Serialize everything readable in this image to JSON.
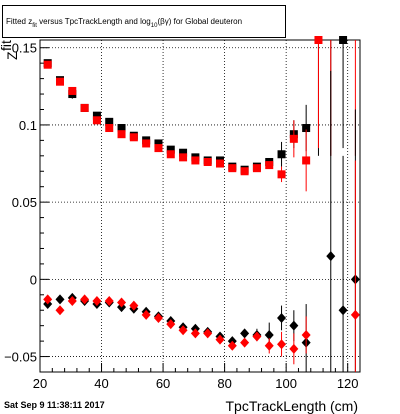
{
  "chart_data": {
    "type": "scatter",
    "title": "Fitted z_{fit} versus TpcTrackLength and log_{10}(βγ) for Global deuteron",
    "title_parts": {
      "prefix": "Fitted  z",
      "z_sub": "fit",
      "middle": " versus TpcTrackLength and log",
      "log_sub": "10",
      "suffix": "(βγ) for Global deuteron"
    },
    "xlabel": "TpcTrackLength (cm)",
    "ylabel": "Z",
    "ylabel_sup": "fit",
    "xlim": [
      20,
      124
    ],
    "ylim": [
      -0.06,
      0.155
    ],
    "x_ticks": [
      20,
      40,
      60,
      80,
      100,
      120
    ],
    "y_ticks": [
      -0.05,
      0,
      0.05,
      0.1,
      0.15
    ],
    "x_tick_labels": [
      "20",
      "40",
      "60",
      "80",
      "100",
      "120"
    ],
    "y_tick_labels": [
      "−0.05",
      "0",
      "0.05",
      "0.1",
      "0.15"
    ],
    "grid": true,
    "footer": "Sat Sep  9 11:38:11 2017",
    "series": [
      {
        "marker": "square",
        "color": "#000000",
        "points": [
          [
            22.5,
            0.14,
            0
          ],
          [
            26.5,
            0.129,
            0
          ],
          [
            30.5,
            0.12,
            0.003
          ],
          [
            34.5,
            0.111,
            0
          ],
          [
            38.5,
            0.106,
            0
          ],
          [
            42.5,
            0.102,
            0
          ],
          [
            46.5,
            0.098,
            0
          ],
          [
            50.5,
            0.093,
            0
          ],
          [
            54.5,
            0.09,
            0
          ],
          [
            58.5,
            0.088,
            0
          ],
          [
            62.5,
            0.084,
            0
          ],
          [
            66.5,
            0.082,
            0
          ],
          [
            70.5,
            0.079,
            0
          ],
          [
            74.5,
            0.077,
            0
          ],
          [
            78.5,
            0.077,
            0
          ],
          [
            82.5,
            0.073,
            0
          ],
          [
            86.5,
            0.071,
            0
          ],
          [
            90.5,
            0.073,
            0
          ],
          [
            94.5,
            0.076,
            0.002
          ],
          [
            98.5,
            0.081,
            0.008
          ],
          [
            102.5,
            0.094,
            0.009
          ],
          [
            106.5,
            0.098,
            0.015
          ],
          [
            110.5,
            0.16,
            0.08
          ],
          [
            114.5,
            0.16,
            0.08
          ],
          [
            118.5,
            0.155,
            0.07
          ]
        ]
      },
      {
        "marker": "square",
        "color": "#ff0000",
        "points": [
          [
            22.5,
            0.139,
            0
          ],
          [
            26.5,
            0.128,
            0
          ],
          [
            30.5,
            0.122,
            0
          ],
          [
            34.5,
            0.111,
            0
          ],
          [
            38.5,
            0.103,
            0
          ],
          [
            42.5,
            0.098,
            0
          ],
          [
            46.5,
            0.094,
            0
          ],
          [
            50.5,
            0.092,
            0
          ],
          [
            54.5,
            0.088,
            0
          ],
          [
            58.5,
            0.085,
            0
          ],
          [
            62.5,
            0.081,
            0
          ],
          [
            66.5,
            0.079,
            0
          ],
          [
            70.5,
            0.077,
            0
          ],
          [
            74.5,
            0.076,
            0
          ],
          [
            78.5,
            0.075,
            0
          ],
          [
            82.5,
            0.072,
            0
          ],
          [
            86.5,
            0.07,
            0
          ],
          [
            90.5,
            0.072,
            0
          ],
          [
            94.5,
            0.074,
            0
          ],
          [
            98.5,
            0.068,
            0.005
          ],
          [
            102.5,
            0.091,
            0.012
          ],
          [
            106.5,
            0.077,
            0.02
          ],
          [
            110.5,
            0.155,
            0.07
          ],
          [
            114.5,
            0.16,
            0.08
          ],
          [
            122.5,
            0.16,
            0.08
          ]
        ]
      },
      {
        "marker": "diamond",
        "color": "#000000",
        "points": [
          [
            22.5,
            -0.016,
            0
          ],
          [
            26.5,
            -0.013,
            0
          ],
          [
            30.5,
            -0.012,
            0
          ],
          [
            34.5,
            -0.014,
            0
          ],
          [
            38.5,
            -0.016,
            0
          ],
          [
            42.5,
            -0.015,
            0
          ],
          [
            46.5,
            -0.018,
            0
          ],
          [
            50.5,
            -0.019,
            0
          ],
          [
            54.5,
            -0.021,
            0
          ],
          [
            58.5,
            -0.024,
            0
          ],
          [
            62.5,
            -0.027,
            0
          ],
          [
            66.5,
            -0.031,
            0
          ],
          [
            70.5,
            -0.032,
            0
          ],
          [
            74.5,
            -0.034,
            0
          ],
          [
            78.5,
            -0.037,
            0
          ],
          [
            82.5,
            -0.04,
            0
          ],
          [
            86.5,
            -0.035,
            0
          ],
          [
            90.5,
            -0.036,
            0.004
          ],
          [
            94.5,
            -0.036,
            0.008
          ],
          [
            98.5,
            -0.025,
            0.008
          ],
          [
            102.5,
            -0.03,
            0.01
          ],
          [
            106.5,
            -0.041,
            0.025
          ],
          [
            114.5,
            0.015,
            0.12
          ],
          [
            118.5,
            -0.02,
            0.1
          ],
          [
            122.5,
            0.0,
            0.11
          ]
        ]
      },
      {
        "marker": "diamond",
        "color": "#ff0000",
        "points": [
          [
            22.5,
            -0.013,
            0
          ],
          [
            26.5,
            -0.02,
            0
          ],
          [
            30.5,
            -0.014,
            0
          ],
          [
            34.5,
            -0.013,
            0
          ],
          [
            38.5,
            -0.014,
            0
          ],
          [
            42.5,
            -0.014,
            0
          ],
          [
            46.5,
            -0.015,
            0
          ],
          [
            50.5,
            -0.017,
            0
          ],
          [
            54.5,
            -0.023,
            0
          ],
          [
            58.5,
            -0.025,
            0
          ],
          [
            62.5,
            -0.029,
            0
          ],
          [
            66.5,
            -0.033,
            0
          ],
          [
            70.5,
            -0.035,
            0
          ],
          [
            74.5,
            -0.035,
            0
          ],
          [
            78.5,
            -0.039,
            0
          ],
          [
            82.5,
            -0.043,
            0
          ],
          [
            86.5,
            -0.041,
            0
          ],
          [
            90.5,
            -0.037,
            0
          ],
          [
            94.5,
            -0.043,
            0.005
          ],
          [
            98.5,
            -0.042,
            0.008
          ],
          [
            102.5,
            -0.045,
            0.01
          ],
          [
            106.5,
            -0.036,
            0.012
          ],
          [
            122.5,
            -0.023,
            0.1
          ]
        ]
      }
    ]
  }
}
